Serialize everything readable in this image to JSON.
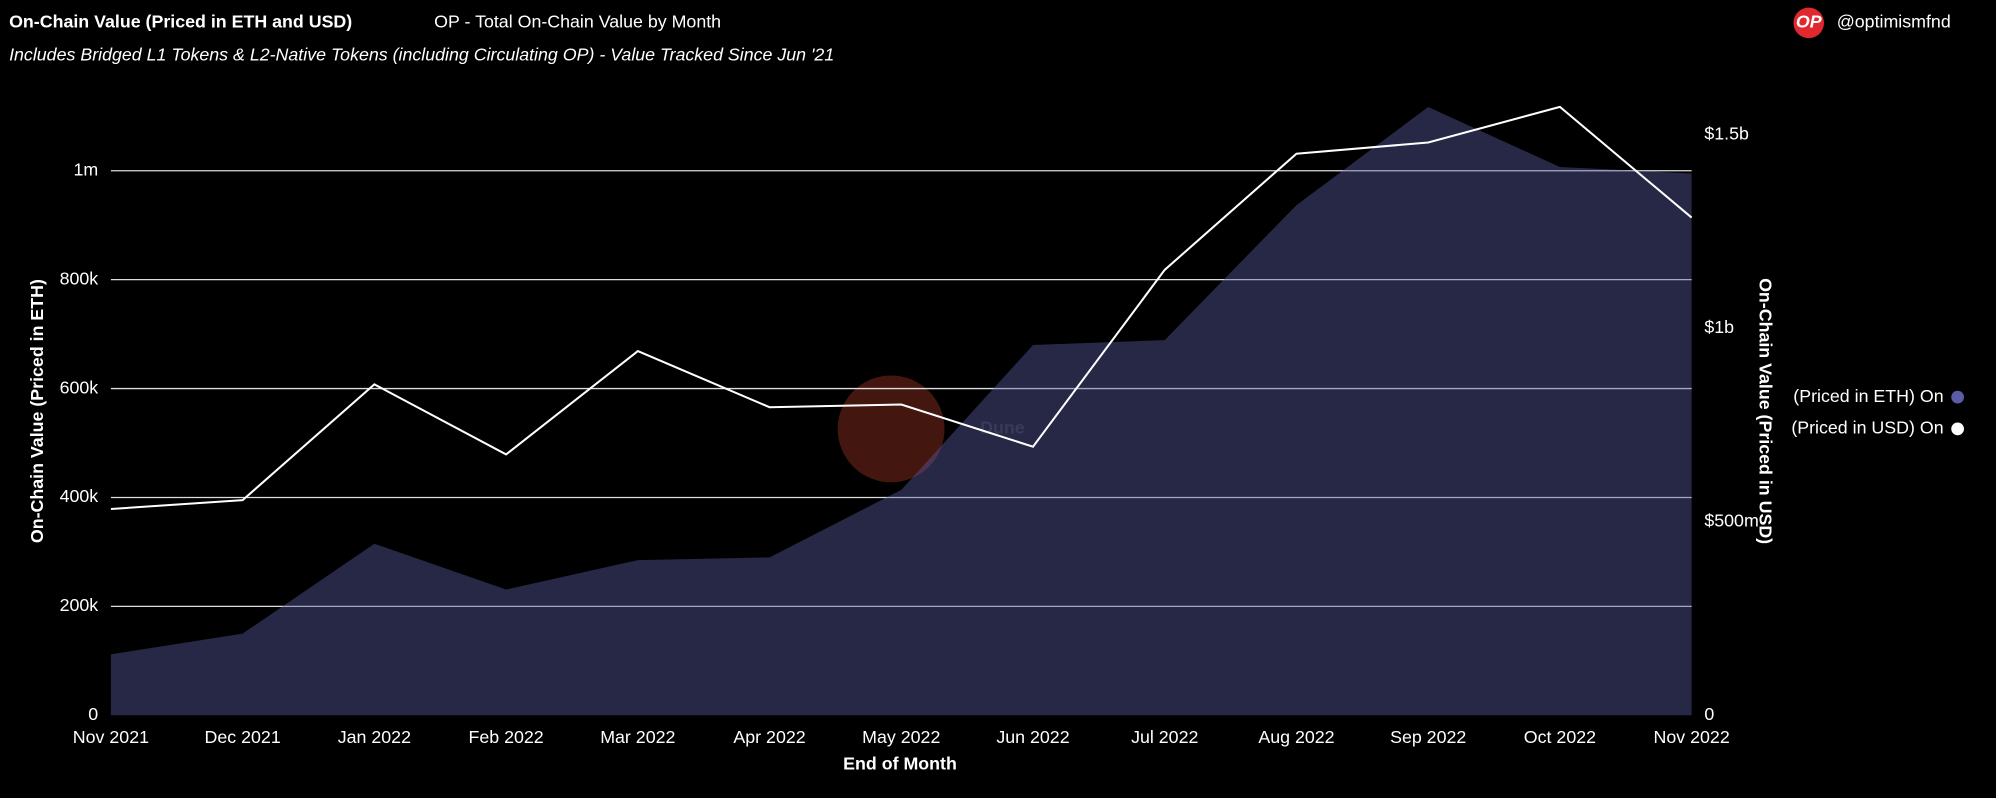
{
  "header": {
    "title": "On-Chain Value (Priced in ETH and USD)",
    "subtitle": "OP - Total On-Chain Value by Month",
    "description": "Includes Bridged L1 Tokens & L2-Native Tokens (including Circulating OP) - Value Tracked Since Jun '21",
    "logo": "OP",
    "account": "@optimismfnd",
    "watermark": "Dune"
  },
  "chart_data": {
    "type": "area-line",
    "xlabel": "End of Month",
    "ylabel": "On-Chain Value (Priced in ETH)",
    "y2label": "On-Chain Value (Priced in USD)",
    "categories": [
      "Nov 2021",
      "Dec 2021",
      "Jan 2022",
      "Feb 2022",
      "Mar 2022",
      "Apr 2022",
      "May 2022",
      "Jun 2022",
      "Jul 2022",
      "Aug 2022",
      "Sep 2022",
      "Oct 2022",
      "Nov 2022"
    ],
    "series": [
      {
        "name": "(Priced in ETH) On",
        "color": "#5c5ca6",
        "kind": "area",
        "values": [
          112000,
          150000,
          315000,
          231000,
          285000,
          290000,
          414000,
          680000,
          689000,
          937000,
          1117000,
          1007000,
          995000
        ]
      },
      {
        "name": "(Priced in USD) On",
        "color": "#ffffff",
        "kind": "line",
        "axis": "y2",
        "values": [
          533000000,
          556000000,
          855000000,
          674000000,
          941000000,
          796000000,
          803000000,
          694000000,
          1151000000,
          1451000000,
          1480000000,
          1572000000,
          1286000000
        ]
      }
    ],
    "ylim": [
      0,
      1150000
    ],
    "yticks": [
      0,
      {
        "value": 200000,
        "label": "200k"
      },
      {
        "value": 400000,
        "label": "400k"
      },
      {
        "value": 600000,
        "label": "600k"
      },
      {
        "value": 800000,
        "label": "800k"
      },
      {
        "value": 1000000,
        "label": "1m"
      }
    ],
    "y2lim": [
      0,
      1618000000
    ],
    "y2ticks": [
      0,
      {
        "value": 500000000,
        "label": "$500m"
      },
      {
        "value": 1000000000,
        "label": "$1b"
      },
      {
        "value": 1500000000,
        "label": "$1.5b"
      }
    ],
    "grid": true
  }
}
